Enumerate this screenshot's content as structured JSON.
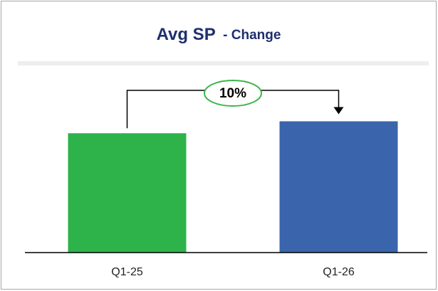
{
  "chart_data": {
    "type": "bar",
    "title": "Avg SP",
    "subtitle": "- Change",
    "categories": [
      "Q1-25",
      "Q1-26"
    ],
    "values": [
      100,
      110
    ],
    "colors": [
      "#2db34a",
      "#3a65ad"
    ],
    "ylim": [
      0,
      155
    ],
    "annotation": "10%",
    "annotation_color": "#3cb54a"
  }
}
